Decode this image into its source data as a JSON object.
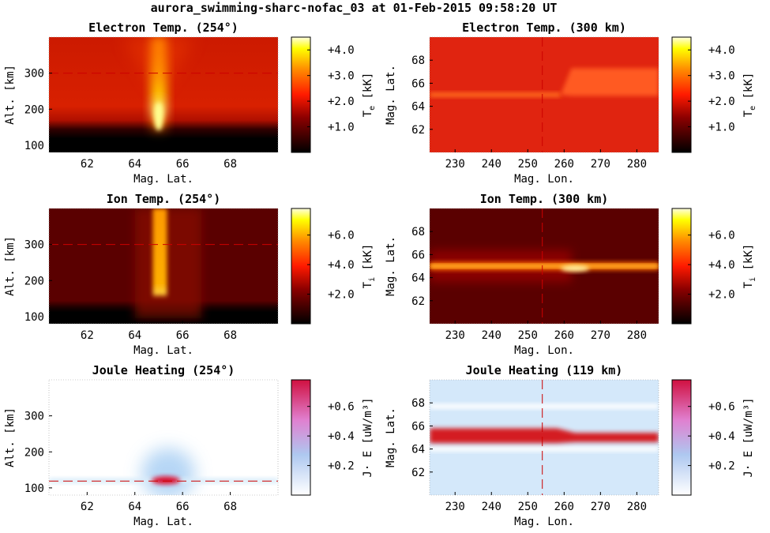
{
  "figure": {
    "title": "aurora_swimming-sharc-nofac_03 at 01-Feb-2015 09:58:20 UT"
  },
  "colors": {
    "hot_colormap": [
      "#000000",
      "#8b0000",
      "#ff0000",
      "#ff8c00",
      "#ffff00",
      "#ffffff"
    ],
    "heating_colormap": [
      "#ffffff",
      "#aec8f0",
      "#e080d0",
      "#d01040"
    ],
    "marker_line": "#cc0000"
  },
  "chart_data": [
    {
      "id": "te_alt",
      "type": "heatmap",
      "title": "Electron Temp. (254°)",
      "xlabel": "Mag. Lat.",
      "ylabel": "Alt. [km]",
      "xlim": [
        60.4,
        70.0
      ],
      "ylim": [
        80,
        400
      ],
      "xticks": [
        "62",
        "64",
        "66",
        "68"
      ],
      "xtick_values": [
        62,
        64,
        66,
        68
      ],
      "yticks": [
        "100",
        "200",
        "300"
      ],
      "ytick_values": [
        100,
        200,
        300
      ],
      "colorbar": {
        "label": "T",
        "sub": "e",
        "unit": " [kK]",
        "ticks": [
          "+1.0",
          "+2.0",
          "+3.0",
          "+4.0"
        ],
        "tick_values": [
          1.0,
          2.0,
          3.0,
          4.0
        ],
        "range": [
          0.0,
          4.5
        ],
        "cmap": "hot"
      },
      "marker": {
        "orientation": "horizontal",
        "value": 300,
        "style": "dashed"
      }
    },
    {
      "id": "te_map",
      "type": "heatmap",
      "title": "Electron Temp. (300 km)",
      "xlabel": "Mag. Lon.",
      "ylabel": "Mag. Lat.",
      "xlim": [
        223,
        286
      ],
      "ylim": [
        60,
        70
      ],
      "xticks": [
        "230",
        "240",
        "250",
        "260",
        "270",
        "280"
      ],
      "xtick_values": [
        230,
        240,
        250,
        260,
        270,
        280
      ],
      "yticks": [
        "62",
        "64",
        "66",
        "68"
      ],
      "ytick_values": [
        62,
        64,
        66,
        68
      ],
      "colorbar": {
        "label": "T",
        "sub": "e",
        "unit": " [kK]",
        "ticks": [
          "+1.0",
          "+2.0",
          "+3.0",
          "+4.0"
        ],
        "tick_values": [
          1.0,
          2.0,
          3.0,
          4.0
        ],
        "range": [
          0.0,
          4.5
        ],
        "cmap": "hot"
      },
      "marker": {
        "orientation": "vertical",
        "value": 254,
        "style": "dashed"
      }
    },
    {
      "id": "ti_alt",
      "type": "heatmap",
      "title": "Ion Temp. (254°)",
      "xlabel": "Mag. Lat.",
      "ylabel": "Alt. [km]",
      "xlim": [
        60.4,
        70.0
      ],
      "ylim": [
        80,
        400
      ],
      "xticks": [
        "62",
        "64",
        "66",
        "68"
      ],
      "xtick_values": [
        62,
        64,
        66,
        68
      ],
      "yticks": [
        "100",
        "200",
        "300"
      ],
      "ytick_values": [
        100,
        200,
        300
      ],
      "colorbar": {
        "label": "T",
        "sub": "i",
        "unit": " [kK]",
        "ticks": [
          "+2.0",
          "+4.0",
          "+6.0"
        ],
        "tick_values": [
          2.0,
          4.0,
          6.0
        ],
        "range": [
          0.0,
          7.8
        ],
        "cmap": "hot"
      },
      "marker": {
        "orientation": "horizontal",
        "value": 300,
        "style": "dashed"
      }
    },
    {
      "id": "ti_map",
      "type": "heatmap",
      "title": "Ion Temp. (300 km)",
      "xlabel": "Mag. Lon.",
      "ylabel": "Mag. Lat.",
      "xlim": [
        223,
        286
      ],
      "ylim": [
        60,
        70
      ],
      "xticks": [
        "230",
        "240",
        "250",
        "260",
        "270",
        "280"
      ],
      "xtick_values": [
        230,
        240,
        250,
        260,
        270,
        280
      ],
      "yticks": [
        "62",
        "64",
        "66",
        "68"
      ],
      "ytick_values": [
        62,
        64,
        66,
        68
      ],
      "colorbar": {
        "label": "T",
        "sub": "i",
        "unit": " [kK]",
        "ticks": [
          "+2.0",
          "+4.0",
          "+6.0"
        ],
        "tick_values": [
          2.0,
          4.0,
          6.0
        ],
        "range": [
          0.0,
          7.8
        ],
        "cmap": "hot"
      },
      "marker": {
        "orientation": "vertical",
        "value": 254,
        "style": "dashed"
      }
    },
    {
      "id": "jh_alt",
      "type": "heatmap",
      "title": "Joule Heating (254°)",
      "xlabel": "Mag. Lat.",
      "ylabel": "Alt. [km]",
      "xlim": [
        60.4,
        70.0
      ],
      "ylim": [
        80,
        400
      ],
      "xticks": [
        "62",
        "64",
        "66",
        "68"
      ],
      "xtick_values": [
        62,
        64,
        66,
        68
      ],
      "yticks": [
        "100",
        "200",
        "300"
      ],
      "ytick_values": [
        100,
        200,
        300
      ],
      "colorbar": {
        "label": "J· E",
        "sub": "",
        "unit": " [uW/m³]",
        "ticks": [
          "+0.2",
          "+0.4",
          "+0.6"
        ],
        "tick_values": [
          0.2,
          0.4,
          0.6
        ],
        "range": [
          0.0,
          0.78
        ],
        "cmap": "heating"
      },
      "marker": {
        "orientation": "horizontal",
        "value": 119,
        "style": "dashed"
      }
    },
    {
      "id": "jh_map",
      "type": "heatmap",
      "title": "Joule Heating (119 km)",
      "xlabel": "Mag. Lon.",
      "ylabel": "Mag. Lat.",
      "xlim": [
        223,
        286
      ],
      "ylim": [
        60,
        70
      ],
      "xticks": [
        "230",
        "240",
        "250",
        "260",
        "270",
        "280"
      ],
      "xtick_values": [
        230,
        240,
        250,
        260,
        270,
        280
      ],
      "yticks": [
        "62",
        "64",
        "66",
        "68"
      ],
      "ytick_values": [
        62,
        64,
        66,
        68
      ],
      "colorbar": {
        "label": "J· E",
        "sub": "",
        "unit": " [uW/m³]",
        "ticks": [
          "+0.2",
          "+0.4",
          "+0.6"
        ],
        "tick_values": [
          0.2,
          0.4,
          0.6
        ],
        "range": [
          0.0,
          0.78
        ],
        "cmap": "heating"
      },
      "marker": {
        "orientation": "vertical",
        "value": 254,
        "style": "dashed"
      }
    }
  ]
}
